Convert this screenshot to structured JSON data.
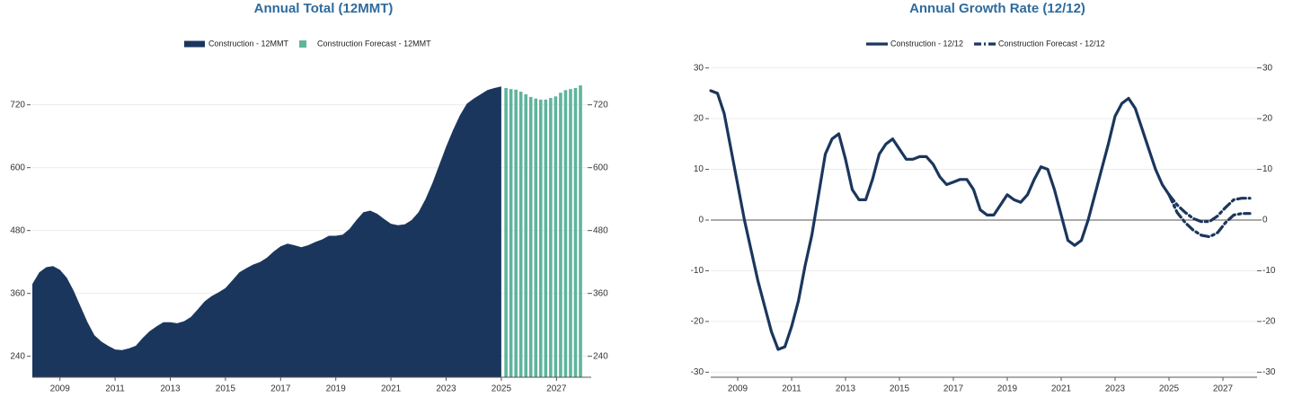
{
  "chart_data": [
    {
      "type": "area",
      "title": "Annual Total (12MMT)",
      "xlim": [
        2008,
        2028
      ],
      "xticks": [
        2009,
        2011,
        2013,
        2015,
        2017,
        2019,
        2021,
        2023,
        2025,
        2027
      ],
      "ylim": [
        200,
        800
      ],
      "yticks": [
        240,
        360,
        480,
        600,
        720
      ],
      "y2lim": [
        200,
        800
      ],
      "y2ticks": [
        240,
        360,
        480,
        600,
        720
      ],
      "grid": true,
      "zero_line": false,
      "series": [
        {
          "name": "Construction - 12MMT",
          "type": "area",
          "color": "#1b365d",
          "x": [
            2008.0,
            2008.25,
            2008.5,
            2008.75,
            2009.0,
            2009.25,
            2009.5,
            2009.75,
            2010.0,
            2010.25,
            2010.5,
            2010.75,
            2011.0,
            2011.25,
            2011.5,
            2011.75,
            2012.0,
            2012.25,
            2012.5,
            2012.75,
            2013.0,
            2013.25,
            2013.5,
            2013.75,
            2014.0,
            2014.25,
            2014.5,
            2014.75,
            2015.0,
            2015.25,
            2015.5,
            2015.75,
            2016.0,
            2016.25,
            2016.5,
            2016.75,
            2017.0,
            2017.25,
            2017.5,
            2017.75,
            2018.0,
            2018.25,
            2018.5,
            2018.75,
            2019.0,
            2019.25,
            2019.5,
            2019.75,
            2020.0,
            2020.25,
            2020.5,
            2020.75,
            2021.0,
            2021.25,
            2021.5,
            2021.75,
            2022.0,
            2022.25,
            2022.5,
            2022.75,
            2023.0,
            2023.25,
            2023.5,
            2023.75,
            2024.0,
            2024.25,
            2024.5,
            2024.75,
            2025.0
          ],
          "values": [
            378,
            400,
            410,
            412,
            405,
            390,
            365,
            335,
            305,
            280,
            268,
            260,
            253,
            252,
            255,
            260,
            275,
            288,
            297,
            305,
            305,
            303,
            307,
            315,
            330,
            345,
            355,
            362,
            370,
            385,
            400,
            408,
            415,
            420,
            428,
            440,
            450,
            455,
            452,
            448,
            452,
            458,
            463,
            470,
            470,
            472,
            483,
            500,
            515,
            518,
            512,
            502,
            493,
            490,
            492,
            500,
            515,
            540,
            570,
            605,
            640,
            672,
            700,
            722,
            732,
            740,
            748,
            752,
            755
          ]
        },
        {
          "name": "Construction Forecast - 12MMT",
          "type": "bar",
          "color": "#5fb49c",
          "x": [
            2025.17,
            2025.35,
            2025.53,
            2025.71,
            2025.89,
            2026.07,
            2026.25,
            2026.43,
            2026.61,
            2026.79,
            2026.97,
            2027.15,
            2027.33,
            2027.51,
            2027.69,
            2027.87
          ],
          "values": [
            752,
            750,
            749,
            745,
            740,
            735,
            732,
            730,
            730,
            733,
            736,
            743,
            748,
            750,
            752,
            757
          ]
        }
      ]
    },
    {
      "type": "line",
      "title": "Annual Growth Rate (12/12)",
      "xlim": [
        2008,
        2028
      ],
      "xticks": [
        2009,
        2011,
        2013,
        2015,
        2017,
        2019,
        2021,
        2023,
        2025,
        2027
      ],
      "ylim": [
        -31,
        31
      ],
      "yticks": [
        -30,
        -20,
        -10,
        0,
        10,
        20,
        30
      ],
      "y2lim": [
        -31,
        31
      ],
      "y2ticks": [
        -30,
        -20,
        -10,
        0,
        10,
        20,
        30
      ],
      "grid": true,
      "zero_line": true,
      "series": [
        {
          "name": "Construction - 12/12",
          "type": "line",
          "color": "#1b365d",
          "dash": false,
          "x": [
            2008.0,
            2008.25,
            2008.5,
            2008.75,
            2009.0,
            2009.25,
            2009.5,
            2009.75,
            2010.0,
            2010.25,
            2010.5,
            2010.75,
            2011.0,
            2011.25,
            2011.5,
            2011.75,
            2012.0,
            2012.25,
            2012.5,
            2012.75,
            2013.0,
            2013.25,
            2013.5,
            2013.75,
            2014.0,
            2014.25,
            2014.5,
            2014.75,
            2015.0,
            2015.25,
            2015.5,
            2015.75,
            2016.0,
            2016.25,
            2016.5,
            2016.75,
            2017.0,
            2017.25,
            2017.5,
            2017.75,
            2018.0,
            2018.25,
            2018.5,
            2018.75,
            2019.0,
            2019.25,
            2019.5,
            2019.75,
            2020.0,
            2020.25,
            2020.5,
            2020.75,
            2021.0,
            2021.25,
            2021.5,
            2021.75,
            2022.0,
            2022.25,
            2022.5,
            2022.75,
            2023.0,
            2023.25,
            2023.5,
            2023.75,
            2024.0,
            2024.25,
            2024.5,
            2024.75,
            2025.0
          ],
          "values": [
            25.5,
            25,
            21,
            14,
            7,
            0,
            -6,
            -12,
            -17,
            -22,
            -25.5,
            -25,
            -21,
            -16,
            -9,
            -3,
            5,
            13,
            16,
            17,
            12,
            6,
            4,
            4,
            8,
            13,
            15,
            16,
            14,
            12,
            12,
            12.5,
            12.5,
            11,
            8.5,
            7,
            7.5,
            8,
            8,
            6,
            2,
            1,
            1,
            3,
            5,
            4,
            3.5,
            5,
            8,
            10.5,
            10,
            6,
            1,
            -4,
            -5,
            -4,
            0,
            5,
            10,
            15,
            20.5,
            23,
            24,
            22,
            18,
            14,
            10,
            7,
            5
          ]
        },
        {
          "name": "Construction Forecast - 12/12",
          "type": "line",
          "color": "#1b365d",
          "dash": true,
          "x": [
            2025.0,
            2025.3,
            2025.6,
            2025.9,
            2026.2,
            2026.5,
            2026.8,
            2027.1,
            2027.4,
            2027.7,
            2028.0
          ],
          "values": [
            5,
            3,
            1.5,
            0.3,
            -0.3,
            -0.3,
            0.8,
            2.5,
            4,
            4.3,
            4.3
          ]
        },
        {
          "type": "line",
          "color": "#1b365d",
          "dash": true,
          "x": [
            2025.0,
            2025.3,
            2025.6,
            2025.9,
            2026.2,
            2026.5,
            2026.8,
            2027.1,
            2027.4,
            2027.7,
            2028.0
          ],
          "values": [
            5,
            1.5,
            -0.5,
            -2,
            -3,
            -3.3,
            -2.5,
            -0.5,
            1,
            1.3,
            1.3
          ]
        }
      ]
    }
  ]
}
